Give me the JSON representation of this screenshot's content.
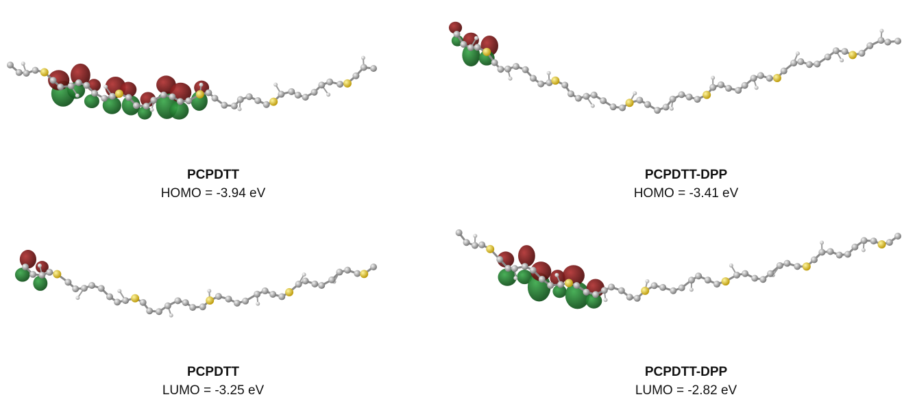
{
  "panels": [
    {
      "name": "PCPDTT",
      "energy": "HOMO = -3.94 eV"
    },
    {
      "name": "PCPDTT-DPP",
      "energy": "HOMO = -3.41 eV"
    },
    {
      "name": "PCPDTT",
      "energy": "LUMO = -3.25 eV"
    },
    {
      "name": "PCPDTT-DPP",
      "energy": "LUMO = -2.82 eV"
    }
  ]
}
